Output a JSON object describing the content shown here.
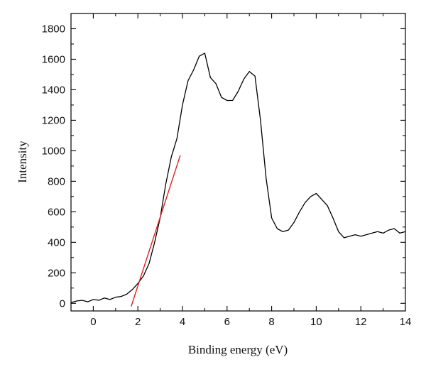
{
  "chart_data": {
    "type": "line",
    "title": "",
    "xlabel": "Binding energy (eV)",
    "ylabel": "Intensity",
    "xlim": [
      -1,
      14
    ],
    "ylim": [
      -50,
      1900
    ],
    "xticks": [
      0,
      2,
      4,
      6,
      8,
      10,
      12,
      14
    ],
    "yticks": [
      0,
      200,
      400,
      600,
      800,
      1000,
      1200,
      1400,
      1600,
      1800
    ],
    "grid": false,
    "legend": "none",
    "series": [
      {
        "color": "#000000",
        "x": [
          -1.0,
          -0.75,
          -0.5,
          -0.25,
          0.0,
          0.25,
          0.5,
          0.75,
          1.0,
          1.25,
          1.5,
          1.75,
          2.0,
          2.25,
          2.5,
          2.75,
          3.0,
          3.25,
          3.5,
          3.75,
          4.0,
          4.25,
          4.5,
          4.75,
          5.0,
          5.25,
          5.5,
          5.75,
          6.0,
          6.25,
          6.5,
          6.75,
          7.0,
          7.25,
          7.5,
          7.75,
          8.0,
          8.25,
          8.5,
          8.75,
          9.0,
          9.25,
          9.5,
          9.75,
          10.0,
          10.25,
          10.5,
          10.75,
          11.0,
          11.25,
          11.5,
          11.75,
          12.0,
          12.25,
          12.5,
          12.75,
          13.0,
          13.25,
          13.5,
          13.75,
          14.0
        ],
        "y": [
          5,
          15,
          20,
          10,
          25,
          20,
          35,
          25,
          40,
          45,
          60,
          90,
          130,
          180,
          260,
          400,
          560,
          780,
          960,
          1080,
          1300,
          1460,
          1530,
          1620,
          1640,
          1480,
          1440,
          1350,
          1330,
          1330,
          1390,
          1470,
          1520,
          1490,
          1200,
          820,
          560,
          490,
          470,
          480,
          530,
          600,
          660,
          700,
          720,
          680,
          640,
          560,
          470,
          430,
          440,
          450,
          440,
          450,
          460,
          470,
          460,
          480,
          490,
          460,
          470
        ]
      },
      {
        "color": "#e02020",
        "x": [
          1.7,
          3.9
        ],
        "y": [
          -20,
          970
        ]
      }
    ]
  }
}
